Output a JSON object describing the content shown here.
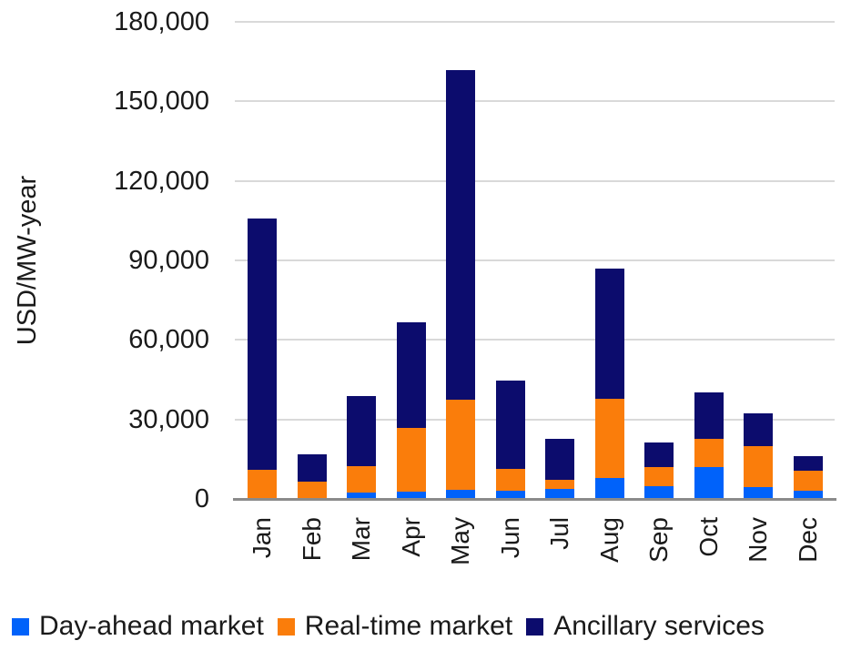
{
  "y_axis": {
    "title": "USD/MW-year",
    "tick_labels": [
      "180,000",
      "150,000",
      "120,000",
      "90,000",
      "60,000",
      "30,000",
      "0"
    ],
    "min": 0,
    "max": 180000,
    "step": 30000
  },
  "colors": {
    "day_ahead_blue": "#0062FA",
    "real_time_orange": "#FA7D0B",
    "ancillary_navy": "#0C0C6D",
    "gridline": "#D9D9D9",
    "axis_line": "#8A8A8A"
  },
  "chart_data": {
    "type": "bar",
    "stacked": true,
    "title": "",
    "xlabel": "",
    "ylabel": "USD/MW-year",
    "ylim": [
      0,
      180000
    ],
    "grid": true,
    "legend_position": "bottom",
    "categories": [
      "Jan",
      "Feb",
      "Mar",
      "Apr",
      "May",
      "Jun",
      "Jul",
      "Aug",
      "Sep",
      "Oct",
      "Nov",
      "Dec"
    ],
    "series": [
      {
        "name": "Day-ahead market",
        "color": "#0062FA",
        "values": [
          0,
          0,
          2500,
          2900,
          3500,
          3100,
          3800,
          8000,
          4800,
          12000,
          4600,
          3100
        ]
      },
      {
        "name": "Real-time market",
        "color": "#FA7D0B",
        "values": [
          10900,
          6700,
          10000,
          24000,
          33800,
          8200,
          3400,
          29800,
          7200,
          10700,
          15200,
          7400
        ]
      },
      {
        "name": "Ancillary services",
        "color": "#0C0C6D",
        "values": [
          95000,
          10000,
          26200,
          39800,
          124600,
          33200,
          15600,
          49200,
          9200,
          17400,
          12600,
          5500
        ]
      }
    ],
    "totals": [
      105900,
      16700,
      38700,
      66700,
      161900,
      44500,
      22800,
      87000,
      21200,
      40100,
      32400,
      16000
    ]
  },
  "legend": {
    "items": [
      {
        "label": "Day-ahead market",
        "color": "#0062FA"
      },
      {
        "label": "Real-time market",
        "color": "#FA7D0B"
      },
      {
        "label": "Ancillary services",
        "color": "#0C0C6D"
      }
    ]
  }
}
